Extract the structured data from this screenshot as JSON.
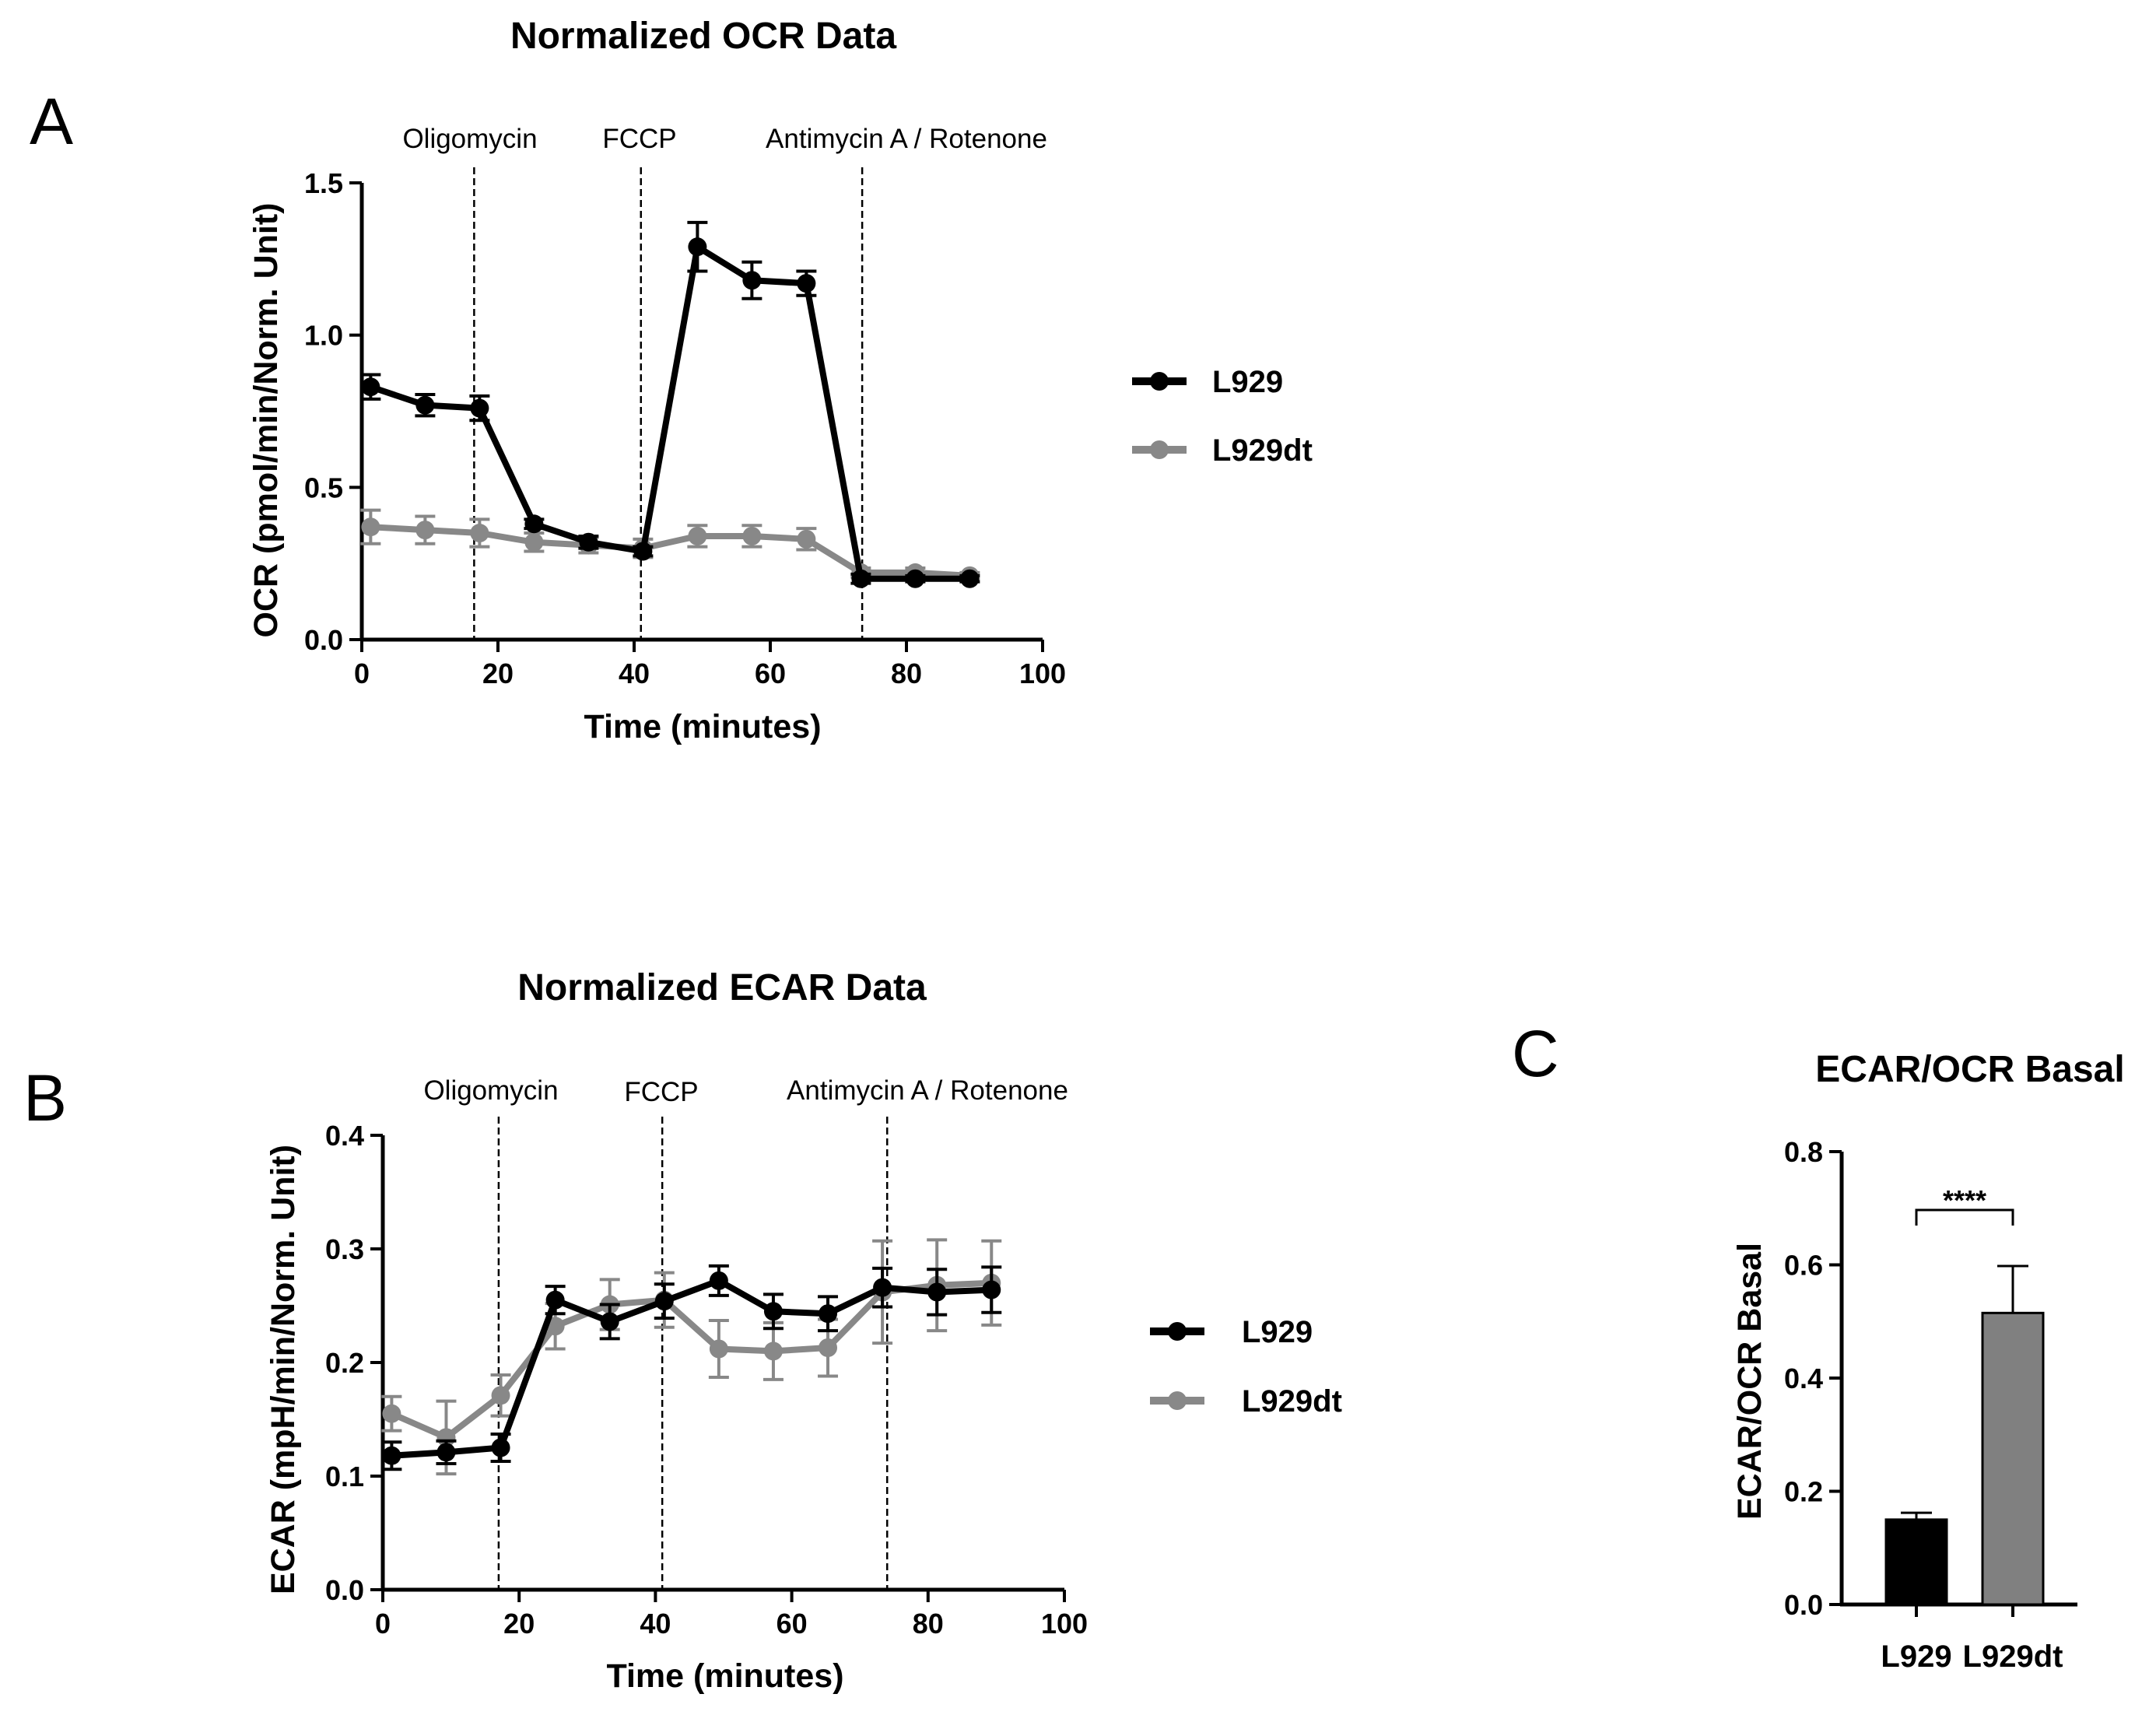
{
  "chart_data": [
    {
      "panel": "A",
      "type": "line",
      "title": "Normalized OCR Data",
      "xlabel": "Time (minutes)",
      "ylabel": "OCR (pmol/min/Norm.  Unit)",
      "xlim": [
        0,
        100
      ],
      "ylim": [
        0,
        1.5
      ],
      "xticks": [
        0,
        20,
        40,
        60,
        80,
        100
      ],
      "yticks": [
        0.0,
        0.5,
        1.0,
        1.5
      ],
      "xtick_labels": [
        "0",
        "20",
        "40",
        "60",
        "80",
        "100"
      ],
      "ytick_labels": [
        "0.0",
        "0.5",
        "1.0",
        "1.5"
      ],
      "injections": [
        {
          "label": "Oligomycin",
          "x": 16.5
        },
        {
          "label": "FCCP",
          "x": 41
        },
        {
          "label": "Antimycin A / Rotenone",
          "x": 73.5
        }
      ],
      "series": [
        {
          "name": "L929",
          "color": "#000000",
          "x": [
            1.3,
            9.3,
            17.3,
            25.3,
            33.3,
            41.3,
            49.3,
            57.3,
            65.3,
            73.3,
            81.3,
            89.3
          ],
          "y": [
            0.83,
            0.77,
            0.76,
            0.38,
            0.32,
            0.29,
            1.29,
            1.18,
            1.17,
            0.2,
            0.2,
            0.2
          ],
          "err": [
            0.04,
            0.035,
            0.04,
            0.015,
            0.02,
            0.015,
            0.08,
            0.06,
            0.04,
            0.015,
            0.01,
            0.01
          ]
        },
        {
          "name": "L929dt",
          "color": "#888888",
          "x": [
            1.3,
            9.3,
            17.3,
            25.3,
            33.3,
            41.3,
            49.3,
            57.3,
            65.3,
            73.3,
            81.3,
            89.3
          ],
          "y": [
            0.37,
            0.36,
            0.35,
            0.32,
            0.31,
            0.3,
            0.34,
            0.34,
            0.33,
            0.22,
            0.22,
            0.21
          ],
          "err": [
            0.055,
            0.045,
            0.045,
            0.03,
            0.025,
            0.03,
            0.035,
            0.035,
            0.035,
            0.015,
            0.015,
            0.01
          ]
        }
      ]
    },
    {
      "panel": "B",
      "type": "line",
      "title": "Normalized ECAR Data",
      "xlabel": "Time (minutes)",
      "ylabel": "ECAR (mpH/min/Norm. Unit)",
      "xlim": [
        0,
        100
      ],
      "ylim": [
        0,
        0.4
      ],
      "xticks": [
        0,
        20,
        40,
        60,
        80,
        100
      ],
      "yticks": [
        0.0,
        0.1,
        0.2,
        0.3,
        0.4
      ],
      "xtick_labels": [
        "0",
        "20",
        "40",
        "60",
        "80",
        "100"
      ],
      "ytick_labels": [
        "0.0",
        "0.1",
        "0.2",
        "0.3",
        "0.4"
      ],
      "injections": [
        {
          "label": "Oligomycin",
          "x": 17
        },
        {
          "label": "FCCP",
          "x": 41
        },
        {
          "label": "Antimycin A / Rotenone",
          "x": 74
        }
      ],
      "series": [
        {
          "name": "L929",
          "color": "#000000",
          "x": [
            1.3,
            9.3,
            17.3,
            25.3,
            33.3,
            41.3,
            49.3,
            57.3,
            65.3,
            73.3,
            81.3,
            89.3
          ],
          "y": [
            0.118,
            0.121,
            0.125,
            0.255,
            0.236,
            0.254,
            0.272,
            0.245,
            0.243,
            0.266,
            0.262,
            0.264
          ],
          "err": [
            0.012,
            0.01,
            0.012,
            0.012,
            0.015,
            0.015,
            0.013,
            0.015,
            0.015,
            0.017,
            0.02,
            0.02
          ]
        },
        {
          "name": "L929dt",
          "color": "#888888",
          "x": [
            1.3,
            9.3,
            17.3,
            25.3,
            33.3,
            41.3,
            49.3,
            57.3,
            65.3,
            73.3,
            81.3,
            89.3
          ],
          "y": [
            0.155,
            0.134,
            0.171,
            0.232,
            0.251,
            0.255,
            0.212,
            0.21,
            0.213,
            0.262,
            0.268,
            0.27
          ],
          "err": [
            0.015,
            0.032,
            0.018,
            0.02,
            0.022,
            0.024,
            0.025,
            0.025,
            0.025,
            0.045,
            0.04,
            0.037
          ]
        }
      ]
    },
    {
      "panel": "C",
      "type": "bar",
      "title": "ECAR/OCR Basal",
      "xlabel": "",
      "ylabel": "ECAR/OCR Basal",
      "ylim": [
        0,
        0.8
      ],
      "yticks": [
        0.0,
        0.2,
        0.4,
        0.6,
        0.8
      ],
      "ytick_labels": [
        "0.0",
        "0.2",
        "0.4",
        "0.6",
        "0.8"
      ],
      "categories": [
        "L929",
        "L929dt"
      ],
      "values": [
        0.15,
        0.515
      ],
      "errors": [
        0.012,
        0.083
      ],
      "colors": [
        "#000000",
        "#808080"
      ],
      "significance": "****"
    }
  ]
}
